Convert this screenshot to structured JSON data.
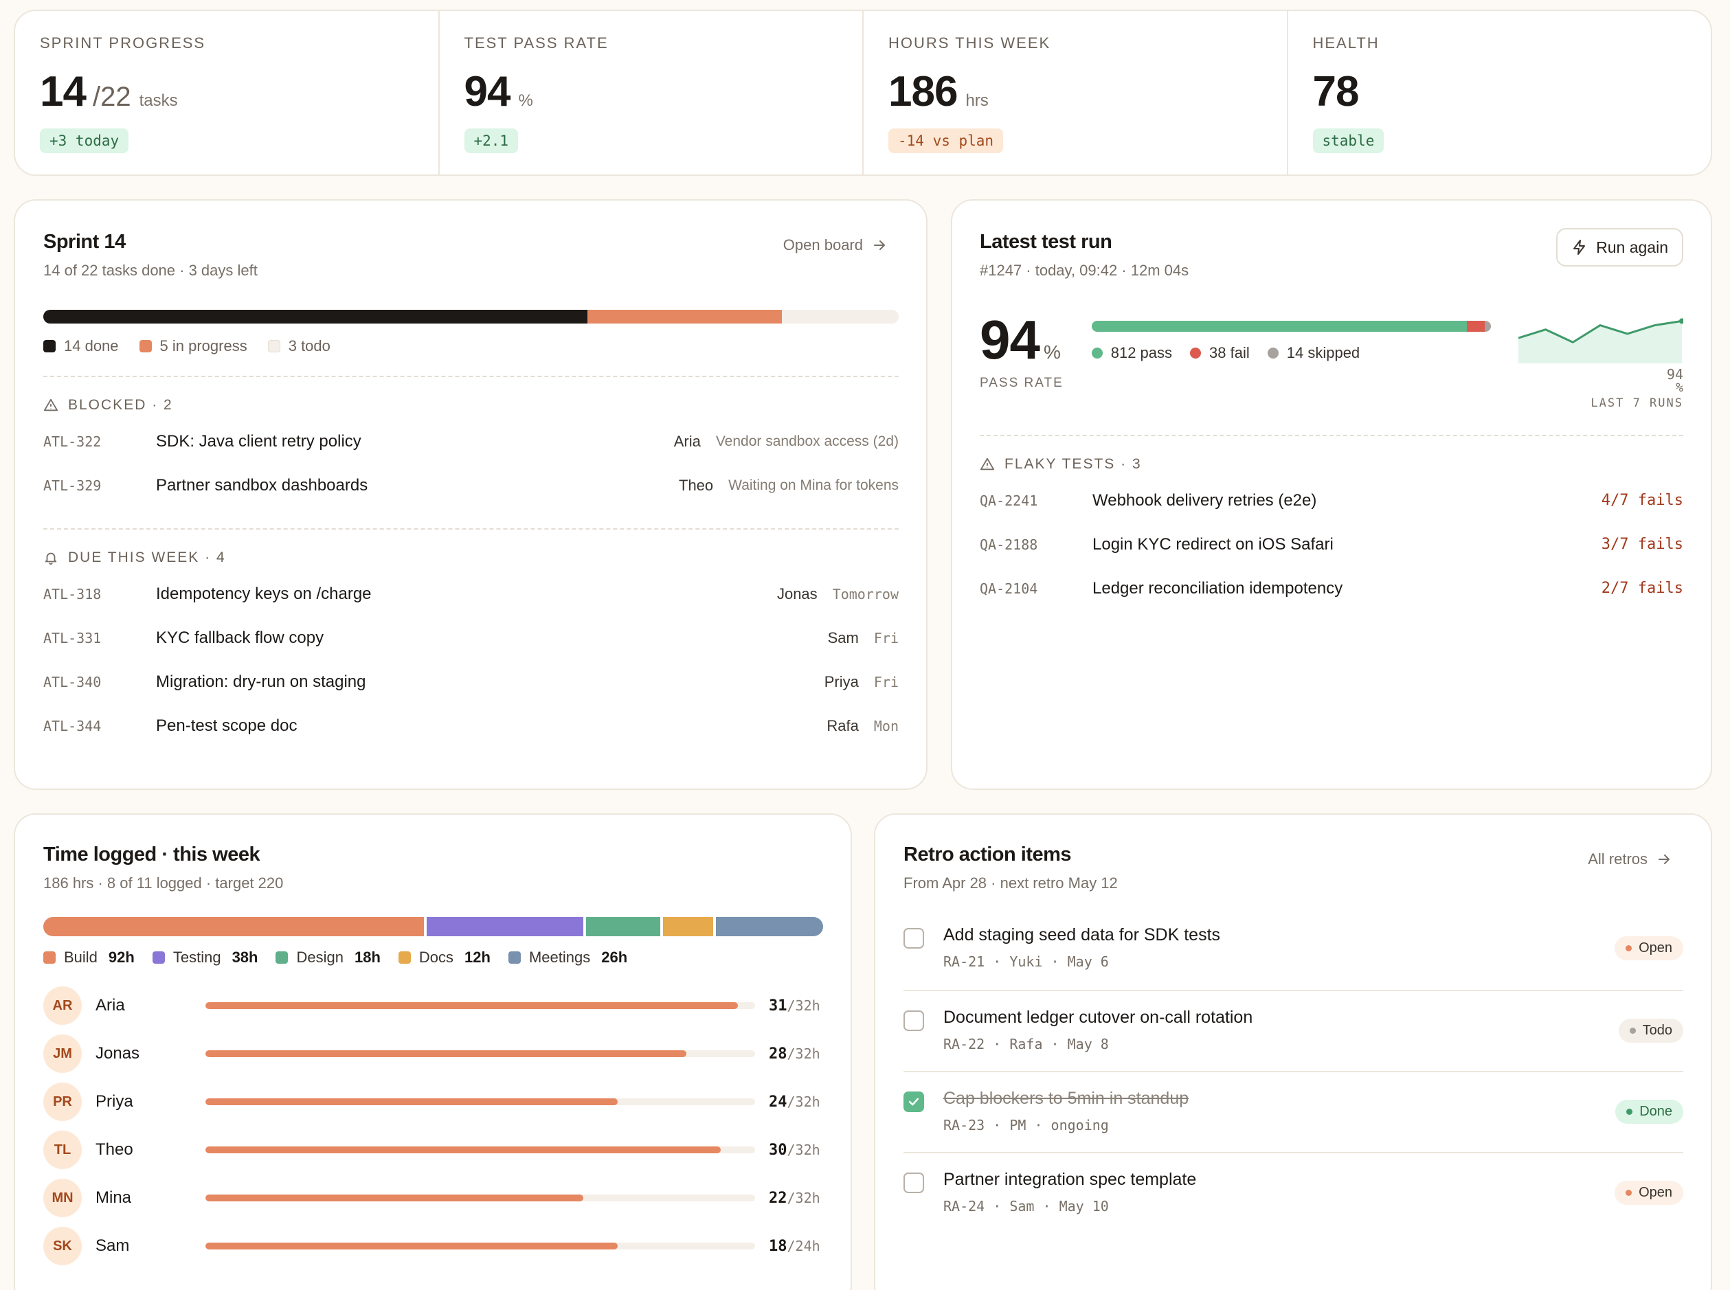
{
  "kpis": [
    {
      "label": "SPRINT PROGRESS",
      "value": "14",
      "fraction": "/22",
      "unit": "tasks",
      "badge": "+3 today",
      "badge_tone": "green"
    },
    {
      "label": "TEST PASS RATE",
      "value": "94",
      "fraction": "",
      "unit": "%",
      "badge": "+2.1",
      "badge_tone": "green"
    },
    {
      "label": "HOURS THIS WEEK",
      "value": "186",
      "fraction": "",
      "unit": "hrs",
      "badge": "-14 vs plan",
      "badge_tone": "orange"
    },
    {
      "label": "HEALTH",
      "value": "78",
      "fraction": "",
      "unit": "",
      "badge": "stable",
      "badge_tone": "green"
    }
  ],
  "sprint": {
    "title": "Sprint 14",
    "subtitle": "14 of 22 tasks done · 3 days left",
    "open_board": "Open board",
    "progress": {
      "done": 14,
      "in_progress": 5,
      "todo": 3
    },
    "legend": {
      "done": "14 done",
      "in_progress": "5 in progress",
      "todo": "3 todo"
    },
    "colors": {
      "done": "#1c1917",
      "in_progress": "#e58760",
      "todo": "#f4efe8"
    },
    "blocked_label": "BLOCKED · 2",
    "blocked": [
      {
        "id": "ATL-322",
        "title": "SDK: Java client retry policy",
        "owner": "Aria",
        "note": "Vendor sandbox access (2d)"
      },
      {
        "id": "ATL-329",
        "title": "Partner sandbox dashboards",
        "owner": "Theo",
        "note": "Waiting on Mina for tokens"
      }
    ],
    "due_label": "DUE THIS WEEK · 4",
    "due": [
      {
        "id": "ATL-318",
        "title": "Idempotency keys on /charge",
        "owner": "Jonas",
        "when": "Tomorrow"
      },
      {
        "id": "ATL-331",
        "title": "KYC fallback flow copy",
        "owner": "Sam",
        "when": "Fri"
      },
      {
        "id": "ATL-340",
        "title": "Migration: dry-run on staging",
        "owner": "Priya",
        "when": "Fri"
      },
      {
        "id": "ATL-344",
        "title": "Pen-test scope doc",
        "owner": "Rafa",
        "when": "Mon"
      }
    ]
  },
  "test_run": {
    "title": "Latest test run",
    "subtitle": "#1247 · today, 09:42 · 12m 04s",
    "run_again": "Run again",
    "pass_rate": "94",
    "pass_unit": "%",
    "pass_rate_label": "PASS RATE",
    "counts": {
      "pass": 812,
      "fail": 38,
      "skipped": 14
    },
    "legend": {
      "pass": "812 pass",
      "fail": "38 fail",
      "skipped": "14 skipped"
    },
    "colors": {
      "pass": "#5fb98a",
      "fail": "#dc5a4e",
      "skipped": "#a8a29e"
    },
    "sparkline_last": "94",
    "sparkline_unit": "%",
    "sparkline_label": "LAST 7 RUNS",
    "flaky_label": "FLAKY TESTS · 3",
    "flaky": [
      {
        "id": "QA-2241",
        "title": "Webhook delivery retries (e2e)",
        "fails": "4/7 fails"
      },
      {
        "id": "QA-2188",
        "title": "Login KYC redirect on iOS Safari",
        "fails": "3/7 fails"
      },
      {
        "id": "QA-2104",
        "title": "Ledger reconciliation idempotency",
        "fails": "2/7 fails"
      }
    ]
  },
  "chart_data": {
    "type": "line",
    "title": "LAST 7 RUNS",
    "x": [
      1,
      2,
      3,
      4,
      5,
      6,
      7
    ],
    "values": [
      90,
      92,
      89,
      93,
      91,
      93,
      94
    ],
    "ylim": [
      85,
      96
    ]
  },
  "time": {
    "title": "Time logged · this week",
    "subtitle": "186 hrs · 8 of 11 logged · target 220",
    "categories": [
      {
        "name": "Build",
        "hours": 92,
        "label": "92h",
        "color": "#e58760"
      },
      {
        "name": "Testing",
        "hours": 38,
        "label": "38h",
        "color": "#8a76d6"
      },
      {
        "name": "Design",
        "hours": 18,
        "label": "18h",
        "color": "#5fb08a"
      },
      {
        "name": "Docs",
        "hours": 12,
        "label": "12h",
        "color": "#e6a94c"
      },
      {
        "name": "Meetings",
        "hours": 26,
        "label": "26h",
        "color": "#7891ae"
      }
    ],
    "people": [
      {
        "initials": "AR",
        "name": "Aria",
        "logged": 31,
        "target": 32,
        "logged_label": "31",
        "target_label": "/32h"
      },
      {
        "initials": "JM",
        "name": "Jonas",
        "logged": 28,
        "target": 32,
        "logged_label": "28",
        "target_label": "/32h"
      },
      {
        "initials": "PR",
        "name": "Priya",
        "logged": 24,
        "target": 32,
        "logged_label": "24",
        "target_label": "/32h"
      },
      {
        "initials": "TL",
        "name": "Theo",
        "logged": 30,
        "target": 32,
        "logged_label": "30",
        "target_label": "/32h"
      },
      {
        "initials": "MN",
        "name": "Mina",
        "logged": 22,
        "target": 32,
        "logged_label": "22",
        "target_label": "/32h"
      },
      {
        "initials": "SK",
        "name": "Sam",
        "logged": 18,
        "target": 24,
        "logged_label": "18",
        "target_label": "/24h"
      }
    ]
  },
  "retro": {
    "title": "Retro action items",
    "subtitle": "From Apr 28 · next retro May 12",
    "all_retros": "All retros",
    "items": [
      {
        "title": "Add staging seed data for SDK tests",
        "meta": "RA-21 · Yuki · May 6",
        "status": "Open",
        "done": false
      },
      {
        "title": "Document ledger cutover on-call rotation",
        "meta": "RA-22 · Rafa · May 8",
        "status": "Todo",
        "done": false
      },
      {
        "title": "Cap blockers to 5min in standup",
        "meta": "RA-23 · PM · ongoing",
        "status": "Done",
        "done": true
      },
      {
        "title": "Partner integration spec template",
        "meta": "RA-24 · Sam · May 10",
        "status": "Open",
        "done": false
      }
    ]
  }
}
